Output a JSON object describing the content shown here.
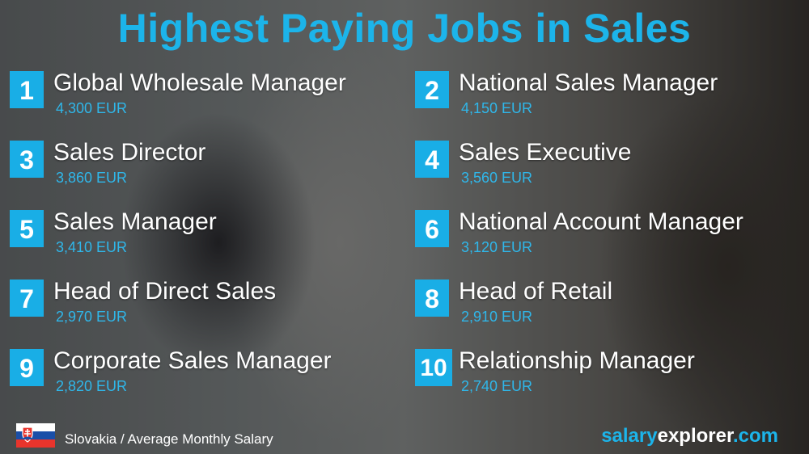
{
  "title": "Highest Paying Jobs in Sales",
  "jobs": [
    {
      "rank": "1",
      "name": "Global Wholesale Manager",
      "salary": "4,300 EUR"
    },
    {
      "rank": "2",
      "name": "National Sales Manager",
      "salary": "4,150 EUR"
    },
    {
      "rank": "3",
      "name": "Sales Director",
      "salary": "3,860 EUR"
    },
    {
      "rank": "4",
      "name": "Sales Executive",
      "salary": "3,560 EUR"
    },
    {
      "rank": "5",
      "name": "Sales Manager",
      "salary": "3,410 EUR"
    },
    {
      "rank": "6",
      "name": "National Account Manager",
      "salary": "3,120 EUR"
    },
    {
      "rank": "7",
      "name": "Head of Direct Sales",
      "salary": "2,970 EUR"
    },
    {
      "rank": "8",
      "name": "Head of Retail",
      "salary": "2,910 EUR"
    },
    {
      "rank": "9",
      "name": "Corporate Sales Manager",
      "salary": "2,820 EUR"
    },
    {
      "rank": "10",
      "name": "Relationship Manager",
      "salary": "2,740 EUR"
    }
  ],
  "footer": {
    "country_flag": "slovakia-flag",
    "caption": "Slovakia / Average Monthly Salary",
    "brand": {
      "part1": "salary",
      "part2": "explorer",
      "part3": ".com"
    }
  },
  "colors": {
    "accent": "#1cb4ea",
    "text": "#ffffff"
  }
}
